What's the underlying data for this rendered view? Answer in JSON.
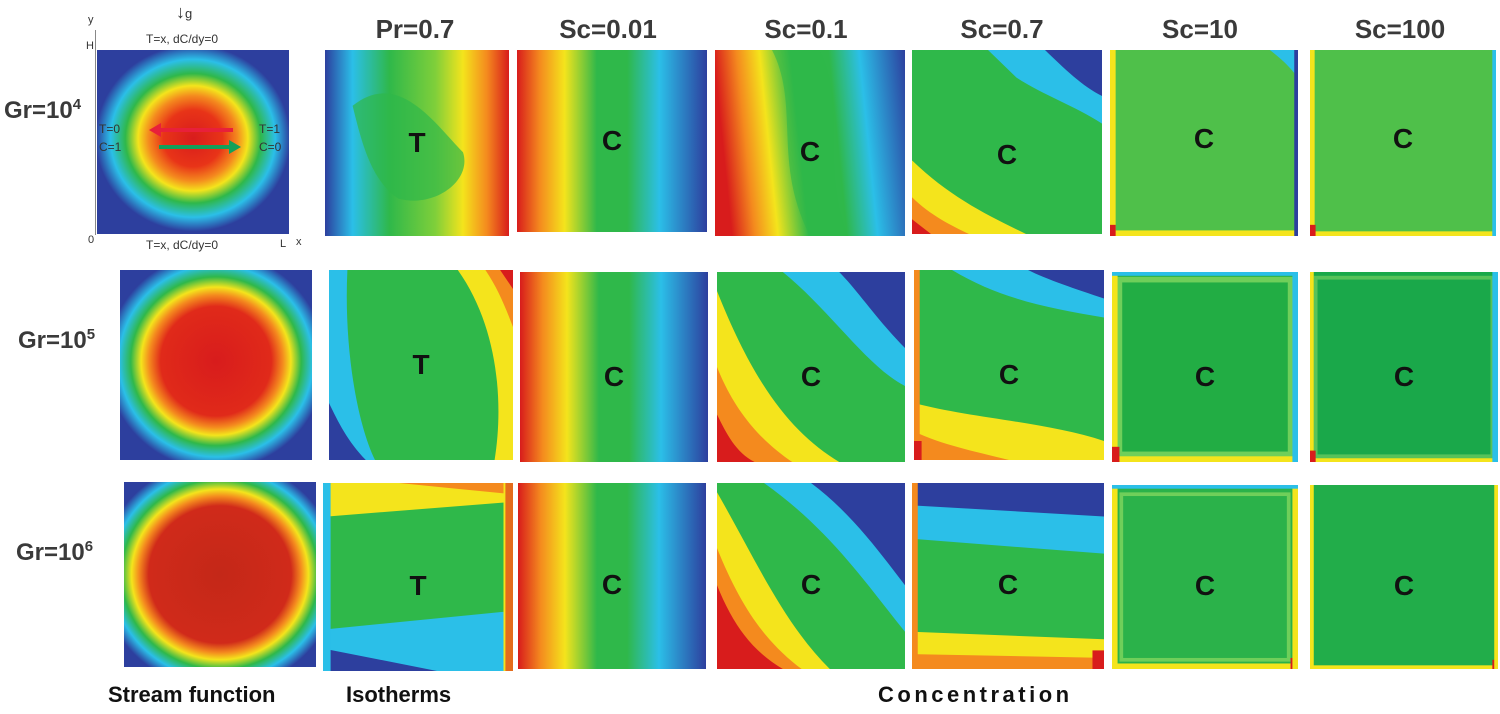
{
  "column_headers": [
    "Pr=0.7",
    "Sc=0.01",
    "Sc=0.1",
    "Sc=0.7",
    "Sc=10",
    "Sc=100"
  ],
  "rows": [
    {
      "base": "Gr=10",
      "exp": "4"
    },
    {
      "base": "Gr=10",
      "exp": "5"
    },
    {
      "base": "Gr=10",
      "exp": "6"
    }
  ],
  "panel_labels": {
    "temperature": "T",
    "concentration": "C"
  },
  "footer": {
    "stream": "Stream function",
    "iso": "Isotherms",
    "conc": "Concentration"
  },
  "schematic": {
    "gravity": "g",
    "top_bc": "T=x, dC/dy=0",
    "bottom_bc": "T=x, dC/dy=0",
    "left_bc_t": "T=0",
    "left_bc_c": "C=1",
    "right_bc_t": "T=1",
    "right_bc_c": "C=0",
    "y_axis": "y",
    "height_label": "H",
    "origin": "0",
    "length_label": "L",
    "x_axis": "x"
  },
  "colors": {
    "blue": "#2d3f9e",
    "cyan": "#2bbfe8",
    "green": "#2fb84a",
    "yellow": "#f4e41c",
    "orange": "#f48a1e",
    "red": "#d81c1c"
  }
}
